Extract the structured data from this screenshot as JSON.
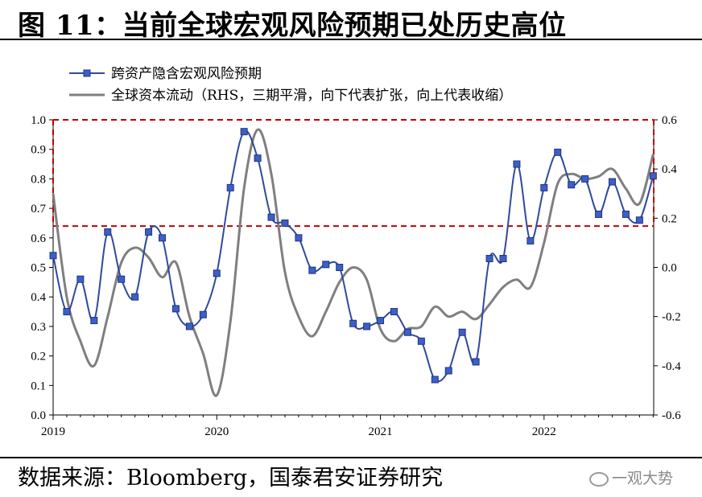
{
  "title": "图 11：当前全球宏观风险预期已处历史高位",
  "source": "数据来源：Bloomberg，国泰君安证券研究",
  "watermark": "一观大势",
  "colors": {
    "series1": "#2F4A9B",
    "marker_fill": "#3C5FC8",
    "series2": "#7F7F7F",
    "threshold": "#C00000"
  },
  "chart_data": {
    "type": "line",
    "title": "",
    "xlabel": "",
    "ylabel": "",
    "x_ticks": [
      "2019",
      "2020",
      "2021",
      "2022"
    ],
    "ylim_left": [
      0,
      1.0
    ],
    "yticks_left": [
      "0.0",
      "0.1",
      "0.2",
      "0.3",
      "0.4",
      "0.5",
      "0.6",
      "0.7",
      "0.8",
      "0.9",
      "1.0"
    ],
    "ylim_right": [
      -0.6,
      0.6
    ],
    "yticks_right": [
      "-0.6",
      "-0.4",
      "-0.2",
      "0.0",
      "0.2",
      "0.4",
      "0.6"
    ],
    "legend_position": "top-left",
    "grid": false,
    "threshold_lines": [
      1.0,
      0.64
    ],
    "series": [
      {
        "name": "跨资产隐含宏观风险预期",
        "axis": "left",
        "style": "line-with-square-markers",
        "x": [
          "2019-01",
          "2019-02",
          "2019-03",
          "2019-04",
          "2019-05",
          "2019-06",
          "2019-07",
          "2019-08",
          "2019-09",
          "2019-10",
          "2019-11",
          "2019-12",
          "2020-01",
          "2020-02",
          "2020-03",
          "2020-04",
          "2020-05",
          "2020-06",
          "2020-07",
          "2020-08",
          "2020-09",
          "2020-10",
          "2020-11",
          "2020-12",
          "2021-01",
          "2021-02",
          "2021-03",
          "2021-04",
          "2021-05",
          "2021-06",
          "2021-07",
          "2021-08",
          "2021-09",
          "2021-10",
          "2021-11",
          "2021-12",
          "2022-01",
          "2022-02",
          "2022-03",
          "2022-04",
          "2022-05",
          "2022-06",
          "2022-07",
          "2022-08",
          "2022-09"
        ],
        "values": [
          0.54,
          0.35,
          0.46,
          0.32,
          0.62,
          0.46,
          0.4,
          0.62,
          0.6,
          0.36,
          0.3,
          0.34,
          0.48,
          0.77,
          0.96,
          0.87,
          0.67,
          0.65,
          0.6,
          0.49,
          0.51,
          0.5,
          0.31,
          0.3,
          0.32,
          0.35,
          0.28,
          0.25,
          0.12,
          0.15,
          0.28,
          0.18,
          0.53,
          0.53,
          0.85,
          0.59,
          0.77,
          0.89,
          0.78,
          0.8,
          0.68,
          0.79,
          0.68,
          0.66,
          0.81
        ]
      },
      {
        "name": "全球资本流动（RHS，三期平滑，向下代表扩张，向上代表收缩）",
        "axis": "right",
        "style": "line",
        "x": [
          "2019-01",
          "2019-02",
          "2019-03",
          "2019-04",
          "2019-05",
          "2019-06",
          "2019-07",
          "2019-08",
          "2019-09",
          "2019-10",
          "2019-11",
          "2019-12",
          "2020-01",
          "2020-02",
          "2020-03",
          "2020-04",
          "2020-05",
          "2020-06",
          "2020-07",
          "2020-08",
          "2020-09",
          "2020-10",
          "2020-11",
          "2020-12",
          "2021-01",
          "2021-02",
          "2021-03",
          "2021-04",
          "2021-05",
          "2021-06",
          "2021-07",
          "2021-08",
          "2021-09",
          "2021-10",
          "2021-11",
          "2021-12",
          "2022-01",
          "2022-02",
          "2022-03",
          "2022-04",
          "2022-05",
          "2022-06",
          "2022-07",
          "2022-08",
          "2022-09"
        ],
        "values": [
          0.3,
          -0.12,
          -0.3,
          -0.4,
          -0.2,
          0.02,
          0.08,
          0.04,
          -0.04,
          0.02,
          -0.2,
          -0.35,
          -0.52,
          -0.22,
          0.32,
          0.56,
          0.38,
          -0.02,
          -0.2,
          -0.28,
          -0.18,
          -0.06,
          0.0,
          -0.05,
          -0.25,
          -0.3,
          -0.25,
          -0.24,
          -0.16,
          -0.2,
          -0.18,
          -0.21,
          -0.15,
          -0.08,
          -0.05,
          -0.08,
          0.1,
          0.34,
          0.38,
          0.36,
          0.37,
          0.4,
          0.32,
          0.26,
          0.46
        ]
      }
    ]
  }
}
